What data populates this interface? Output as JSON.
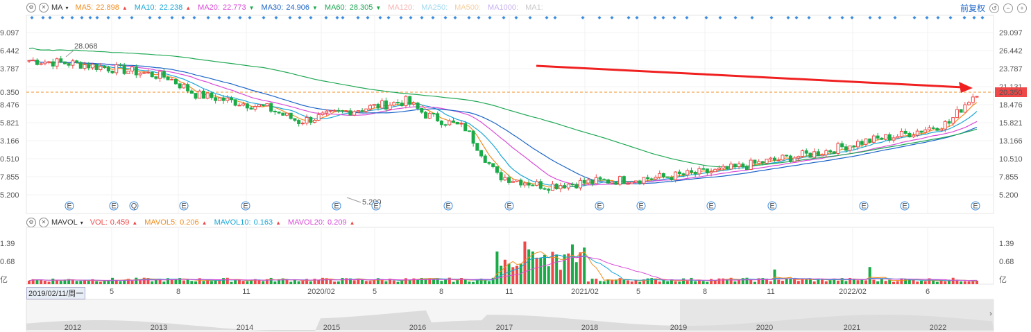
{
  "main_legend": {
    "name": "MA",
    "items": [
      {
        "label": "MA5:",
        "value": "22.898",
        "color": "#f08c1e",
        "dir": "up"
      },
      {
        "label": "MA10:",
        "value": "22.238",
        "color": "#1aa6d8",
        "dir": "up"
      },
      {
        "label": "MA20:",
        "value": "22.773",
        "color": "#d94ad8",
        "dir": "down"
      },
      {
        "label": "MA30:",
        "value": "24.906",
        "color": "#1a64c8",
        "dir": "down"
      },
      {
        "label": "MA60:",
        "value": "28.305",
        "color": "#20a855",
        "dir": "down"
      },
      {
        "label": "MA120:",
        "value": "",
        "color": "#f6b3b3",
        "dir": ""
      },
      {
        "label": "MA250:",
        "value": "",
        "color": "#9fd8f0",
        "dir": ""
      },
      {
        "label": "MA500:",
        "value": "",
        "color": "#f6d0a0",
        "dir": ""
      },
      {
        "label": "MA1000:",
        "value": "",
        "color": "#c8b0f0",
        "dir": ""
      },
      {
        "label": "MA1:",
        "value": "",
        "color": "#c8c8c8",
        "dir": ""
      }
    ]
  },
  "controls": {
    "adjust_label": "前复权"
  },
  "price_axis": {
    "left": [
      "9.097",
      "6.442",
      "3.787",
      "",
      "8.476",
      "5.821",
      "3.166",
      "0.510",
      "7.855",
      "5.200"
    ],
    "right": [
      "29.097",
      "26.442",
      "23.787",
      "21.131",
      "18.476",
      "15.821",
      "13.166",
      "10.510",
      "7.855",
      "5.200"
    ],
    "current_left": "0.350",
    "current_right": "20.350"
  },
  "annotations": {
    "high": "28.068",
    "low": "5.200"
  },
  "event_marker": "E",
  "event_marker_q": "Q",
  "vol_legend": {
    "name": "MAVOL",
    "items": [
      {
        "label": "VOL:",
        "value": "0.459",
        "color": "#f04848",
        "dir": "up"
      },
      {
        "label": "MAVOL5:",
        "value": "0.206",
        "color": "#f08c1e",
        "dir": "up"
      },
      {
        "label": "MAVOL10:",
        "value": "0.163",
        "color": "#1aa6d8",
        "dir": "up"
      },
      {
        "label": "MAVOL20:",
        "value": "0.209",
        "color": "#d94ad8",
        "dir": "up"
      }
    ]
  },
  "vol_axis": {
    "ticks": [
      "1.39",
      "0.68"
    ],
    "unit": "亿"
  },
  "date_axis": {
    "cursor": "2019/02/11/周一",
    "ticks": [
      "5",
      "8",
      "11",
      "2020/02",
      "5",
      "8",
      "11",
      "2021/02",
      "5",
      "8",
      "11",
      "2022/02",
      "6"
    ]
  },
  "navigator_years": [
    "2012",
    "2013",
    "2014",
    "2015",
    "2016",
    "2017",
    "2018",
    "2019",
    "2020",
    "2021",
    "2022"
  ],
  "colors": {
    "up": "#f04848",
    "down": "#1aaa48",
    "arrow": "#f02020"
  }
}
